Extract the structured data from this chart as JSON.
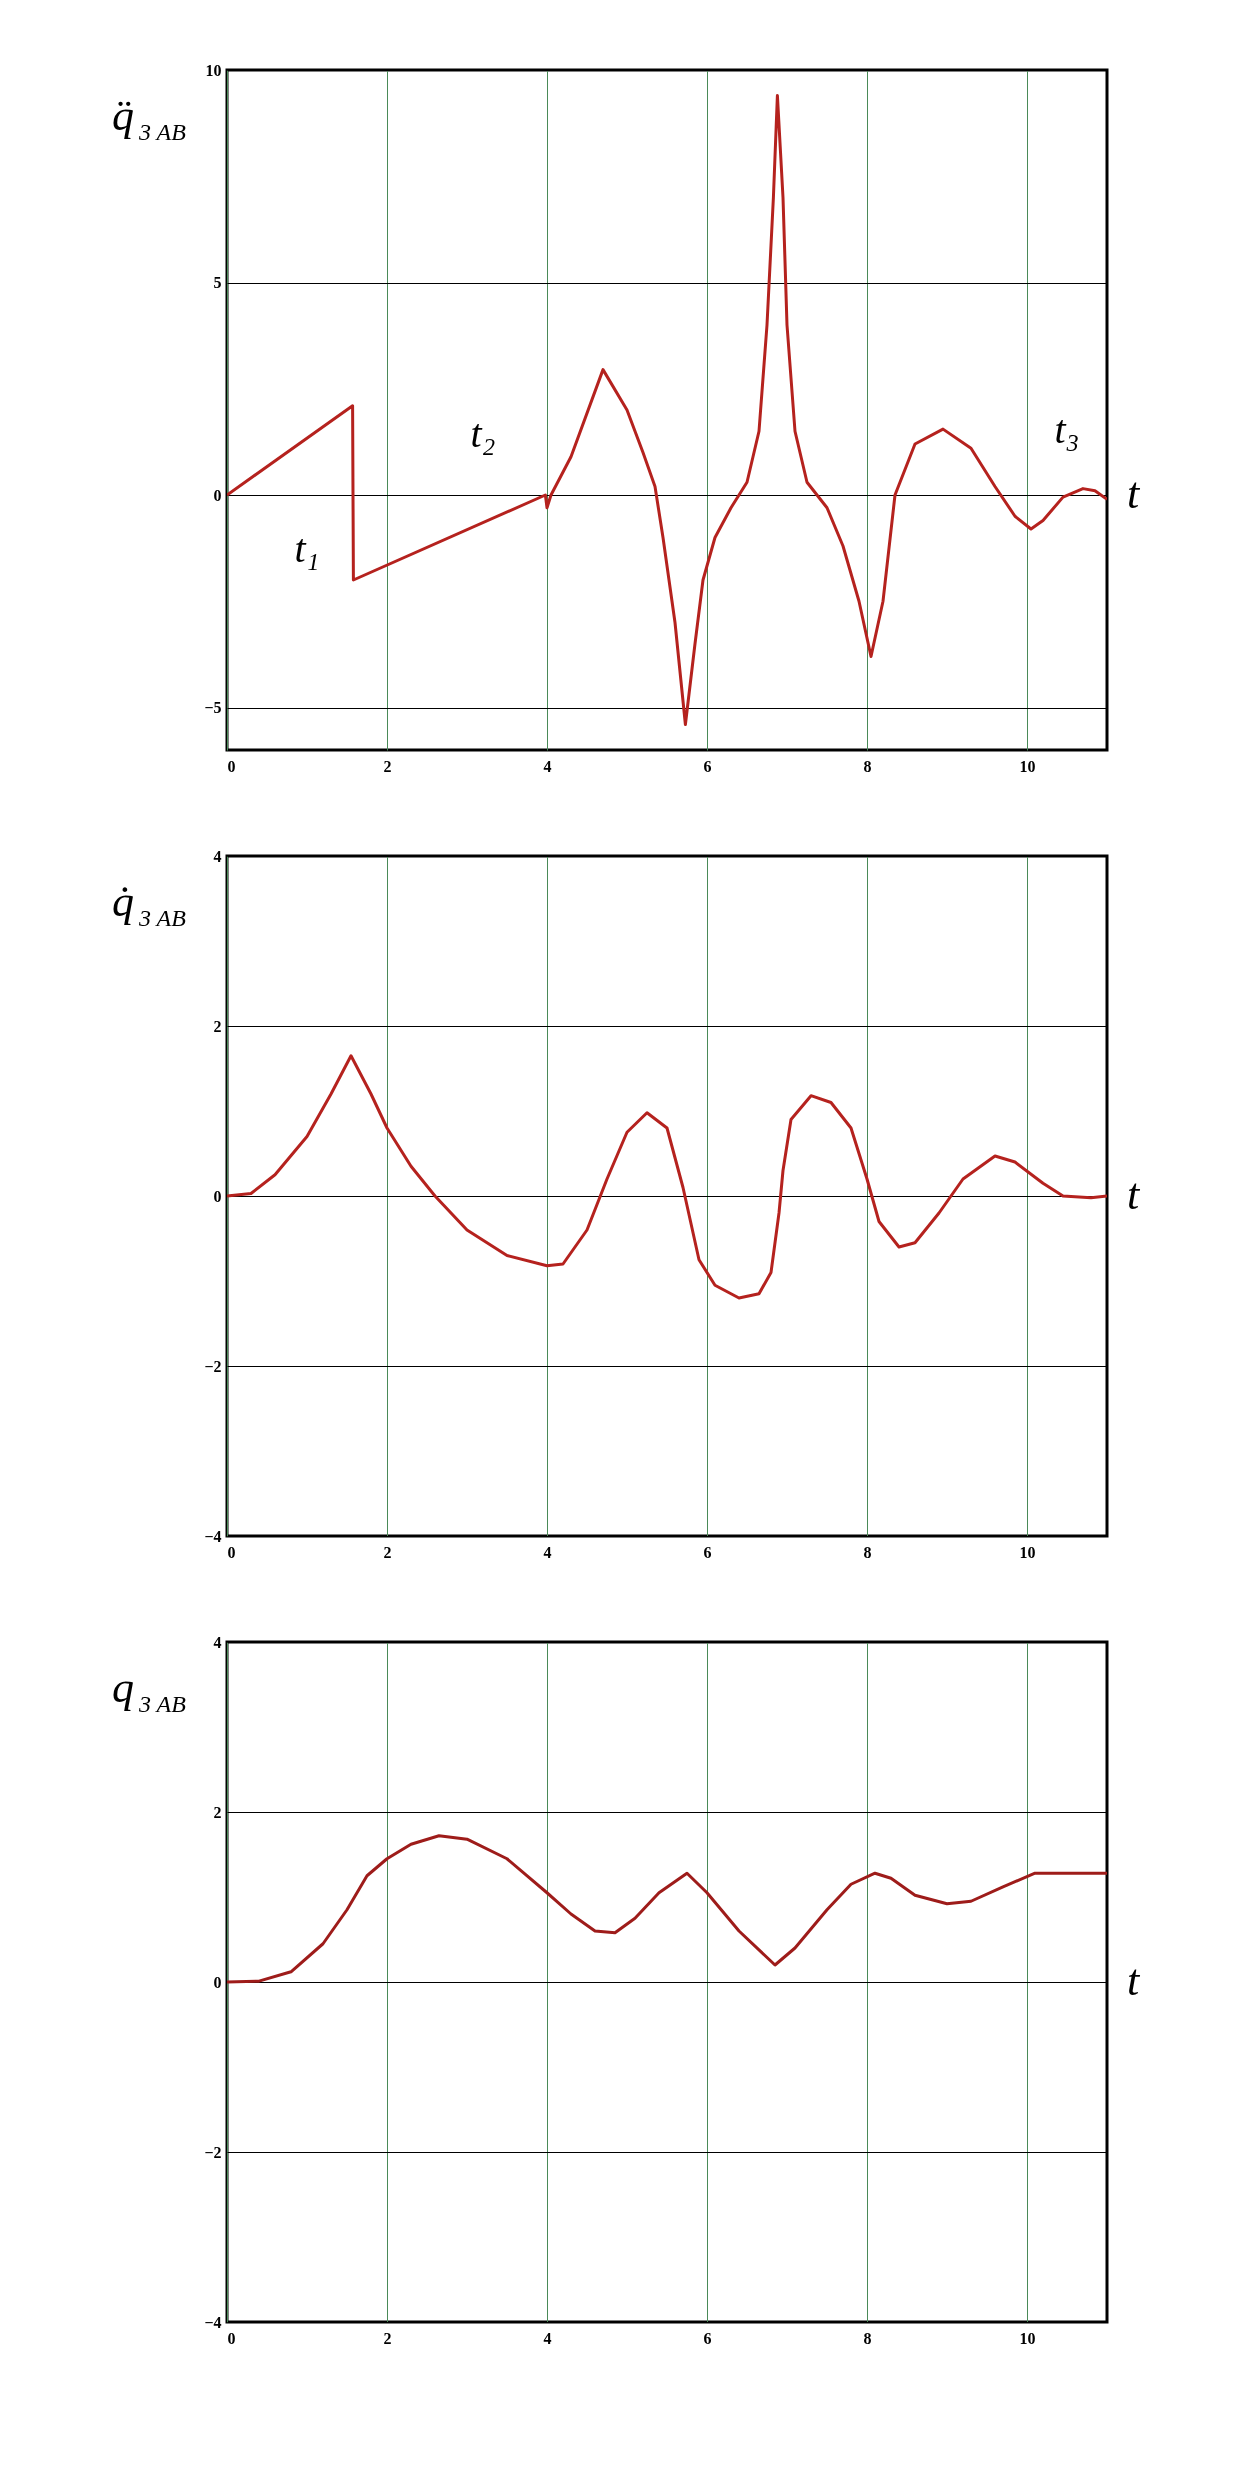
{
  "chart_data": [
    {
      "type": "line",
      "ylabel": "q̈$_{3 AB}$",
      "xlabel": "t",
      "color": "#b5221e",
      "grid": true,
      "xlim": [
        0,
        11
      ],
      "xticks": [
        0,
        2,
        4,
        6,
        8,
        10
      ],
      "ylim": [
        -6,
        10
      ],
      "yticks": [
        -5,
        0,
        5,
        10
      ],
      "x": [
        0,
        1.57,
        1.58,
        3.98,
        4.0,
        4.05,
        4.3,
        4.7,
        5.0,
        5.2,
        5.35,
        5.45,
        5.6,
        5.73,
        5.85,
        5.95,
        6.1,
        6.3,
        6.5,
        6.65,
        6.75,
        6.83,
        6.88,
        6.95,
        7.0,
        7.1,
        7.25,
        7.5,
        7.7,
        7.9,
        8.05,
        8.2,
        8.35,
        8.6,
        8.95,
        9.3,
        9.6,
        9.85,
        10.05,
        10.2,
        10.45,
        10.7,
        10.85,
        11
      ],
      "values": [
        0,
        2.1,
        -2.0,
        0,
        -0.3,
        0,
        0.9,
        2.95,
        2.0,
        1.0,
        0.2,
        -1,
        -3,
        -5.4,
        -3.5,
        -2,
        -1,
        -0.3,
        0.3,
        1.5,
        4,
        7,
        9.4,
        7,
        4,
        1.5,
        0.3,
        -0.3,
        -1.2,
        -2.5,
        -3.8,
        -2.5,
        0,
        1.2,
        1.55,
        1.1,
        0.2,
        -0.5,
        -0.8,
        -0.6,
        -0.05,
        0.15,
        0.1,
        -0.1
      ],
      "annotations": [
        "t₁",
        "t₂",
        "t₃"
      ]
    },
    {
      "type": "line",
      "ylabel": "q̇$_{3 AB}$",
      "xlabel": "t",
      "color": "#b5221e",
      "grid": true,
      "xlim": [
        0,
        11
      ],
      "xticks": [
        0,
        2,
        4,
        6,
        8,
        10
      ],
      "ylim": [
        -4,
        4
      ],
      "yticks": [
        -4,
        -2,
        0,
        2,
        4
      ],
      "x": [
        0,
        0.3,
        0.6,
        1.0,
        1.3,
        1.55,
        1.8,
        2.0,
        2.3,
        2.6,
        3.0,
        3.5,
        4.0,
        4.2,
        4.5,
        4.75,
        5.0,
        5.25,
        5.5,
        5.7,
        5.9,
        6.1,
        6.4,
        6.65,
        6.8,
        6.9,
        6.95,
        7.05,
        7.3,
        7.55,
        7.8,
        8.0,
        8.15,
        8.4,
        8.6,
        8.9,
        9.2,
        9.6,
        9.85,
        10.2,
        10.45,
        10.8,
        11
      ],
      "values": [
        0,
        0.03,
        0.25,
        0.7,
        1.2,
        1.65,
        1.2,
        0.8,
        0.35,
        0,
        -0.4,
        -0.7,
        -0.82,
        -0.8,
        -0.4,
        0.2,
        0.75,
        0.98,
        0.8,
        0.1,
        -0.75,
        -1.05,
        -1.2,
        -1.15,
        -0.9,
        -0.2,
        0.3,
        0.9,
        1.18,
        1.1,
        0.8,
        0.2,
        -0.3,
        -0.6,
        -0.55,
        -0.2,
        0.2,
        0.47,
        0.4,
        0.15,
        0,
        -0.02,
        0
      ]
    },
    {
      "type": "line",
      "ylabel": "q$_{3 AB}$",
      "xlabel": "t",
      "color": "#9e1c1a",
      "grid": true,
      "xlim": [
        0,
        11
      ],
      "xticks": [
        0,
        2,
        4,
        6,
        8,
        10
      ],
      "ylim": [
        -4,
        4
      ],
      "yticks": [
        -4,
        -2,
        0,
        2,
        4
      ],
      "x": [
        0,
        0.4,
        0.8,
        1.2,
        1.5,
        1.75,
        2.0,
        2.3,
        2.65,
        3.0,
        3.5,
        4.0,
        4.3,
        4.6,
        4.85,
        5.1,
        5.4,
        5.75,
        6.0,
        6.4,
        6.85,
        7.1,
        7.5,
        7.8,
        8.1,
        8.3,
        8.6,
        9.0,
        9.3,
        9.7,
        10.1,
        11
      ],
      "values": [
        0,
        0.01,
        0.12,
        0.45,
        0.85,
        1.25,
        1.45,
        1.62,
        1.72,
        1.68,
        1.45,
        1.05,
        0.8,
        0.6,
        0.58,
        0.75,
        1.05,
        1.28,
        1.05,
        0.6,
        0.2,
        0.4,
        0.85,
        1.15,
        1.28,
        1.22,
        1.02,
        0.92,
        0.95,
        1.12,
        1.28,
        1.28
      ]
    }
  ]
}
